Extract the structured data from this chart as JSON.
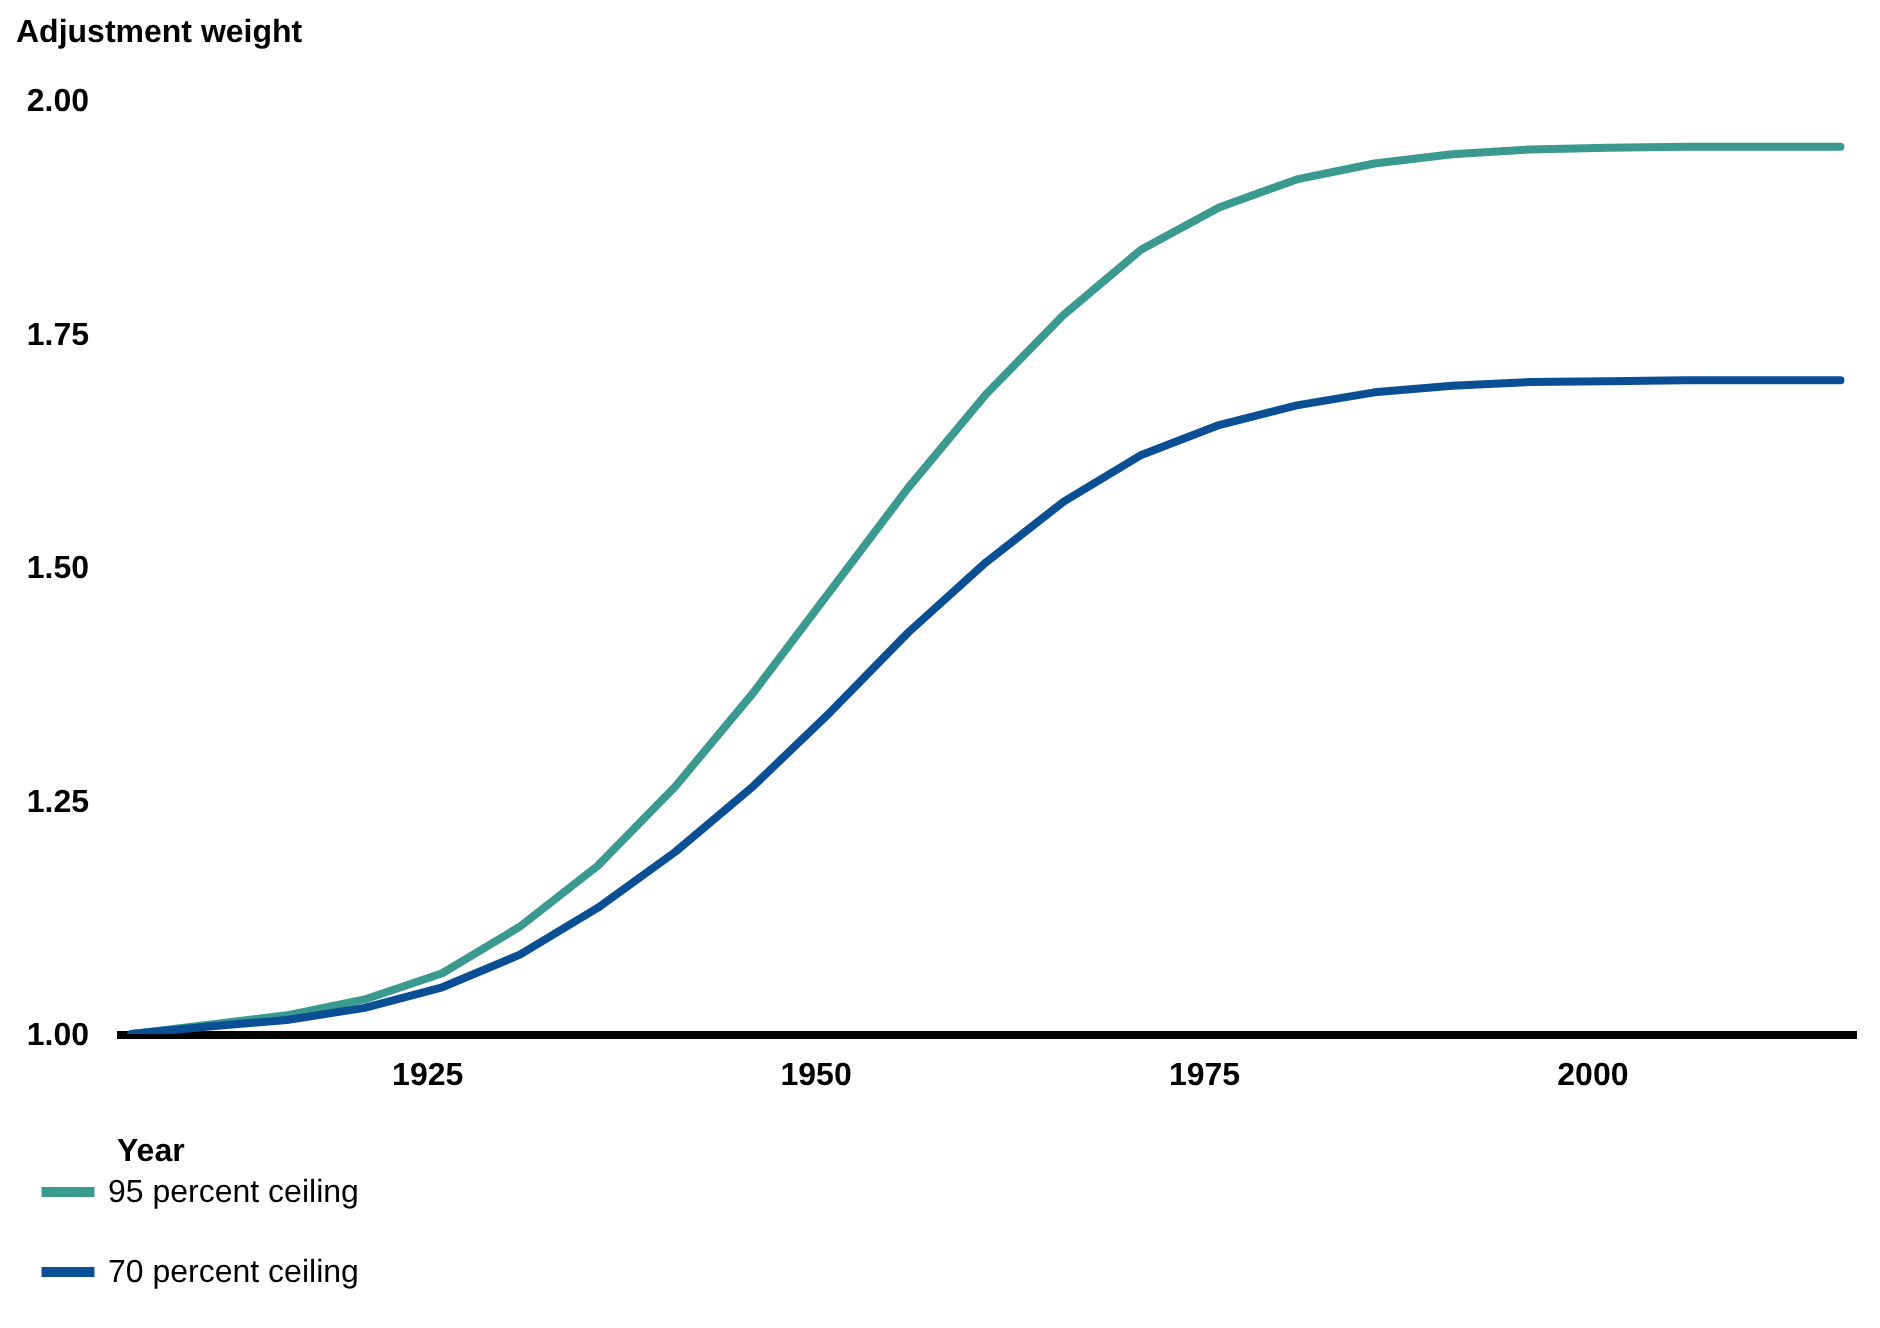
{
  "chart_data": {
    "type": "line",
    "ylabel": "Adjustment weight",
    "xlabel": "Year",
    "x": [
      1906,
      1911,
      1916,
      1921,
      1926,
      1931,
      1936,
      1941,
      1946,
      1951,
      1956,
      1961,
      1966,
      1971,
      1976,
      1981,
      1986,
      1991,
      1996,
      2001,
      2006,
      2011,
      2016
    ],
    "series": [
      {
        "name": "95 percent ceiling",
        "color": "#3a9a8f",
        "values": [
          1.0,
          1.01,
          1.02,
          1.037,
          1.065,
          1.115,
          1.18,
          1.265,
          1.365,
          1.475,
          1.585,
          1.685,
          1.77,
          1.84,
          1.885,
          1.915,
          1.932,
          1.942,
          1.947,
          1.949,
          1.95,
          1.95,
          1.95
        ]
      },
      {
        "name": "70 percent ceiling",
        "color": "#0a4f94",
        "values": [
          1.0,
          1.008,
          1.015,
          1.028,
          1.05,
          1.085,
          1.135,
          1.195,
          1.265,
          1.345,
          1.43,
          1.505,
          1.57,
          1.62,
          1.652,
          1.673,
          1.687,
          1.694,
          1.698,
          1.699,
          1.7,
          1.7,
          1.7
        ]
      }
    ],
    "xlim": [
      1905,
      2017
    ],
    "xticks": [
      1925,
      1950,
      1975,
      2000
    ],
    "ylim": [
      1.0,
      2.0
    ],
    "yticks": [
      {
        "value": 1.0,
        "label": "1.00"
      },
      {
        "value": 1.25,
        "label": "1.25"
      },
      {
        "value": 1.5,
        "label": "1.50"
      },
      {
        "value": 1.75,
        "label": "1.75"
      },
      {
        "value": 2.0,
        "label": "2.00"
      }
    ],
    "grid": false,
    "legend": "bottom left",
    "marker": "none",
    "line_style": "solid"
  }
}
